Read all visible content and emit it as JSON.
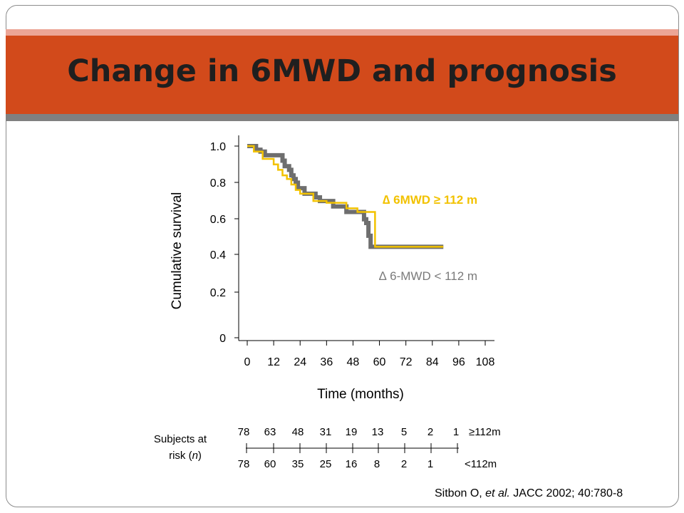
{
  "title": "Change in 6MWD and prognosis",
  "colors": {
    "banner": "#d24a1b",
    "series_high": "#f2c200",
    "series_low": "#6e6e6e"
  },
  "chart_data": {
    "type": "line",
    "subtype": "kaplan-meier step",
    "xlabel": "Time (months)",
    "ylabel": "Cumulative survival",
    "xlim": [
      0,
      108
    ],
    "ylim": [
      0,
      1.0
    ],
    "x_ticks": [
      0,
      12,
      24,
      36,
      48,
      60,
      72,
      84,
      96,
      108
    ],
    "y_ticks": [
      0,
      0.2,
      0.4,
      0.6,
      0.8,
      1.0
    ],
    "y_tick_labels": [
      "0",
      "0.2",
      "0.4",
      "0.6",
      "0.8",
      "1.0"
    ],
    "grid": false,
    "series": [
      {
        "name": "∆ 6-MWD < 112 m",
        "color": "#6e6e6e",
        "x": [
          0,
          4,
          6,
          8,
          16,
          17,
          19,
          20,
          21,
          22,
          23,
          26,
          31,
          33,
          39,
          45,
          53,
          54,
          55,
          56,
          89
        ],
        "y": [
          1.0,
          0.98,
          0.97,
          0.95,
          0.92,
          0.89,
          0.87,
          0.84,
          0.82,
          0.8,
          0.77,
          0.74,
          0.72,
          0.7,
          0.67,
          0.64,
          0.6,
          0.58,
          0.51,
          0.45,
          0.45
        ]
      },
      {
        "name": "∆ 6MWD ≥ 112 m",
        "color": "#f2c200",
        "x": [
          0,
          3,
          7,
          12,
          14,
          16,
          18,
          20,
          22,
          24,
          30,
          36,
          45,
          50,
          58,
          89
        ],
        "y": [
          1.0,
          0.97,
          0.93,
          0.9,
          0.87,
          0.84,
          0.82,
          0.79,
          0.76,
          0.74,
          0.7,
          0.69,
          0.66,
          0.64,
          0.45,
          0.45
        ]
      }
    ],
    "annotations": {
      "high": "∆ 6MWD ≥ 112 m",
      "low": "∆ 6-MWD < 112 m"
    },
    "risk_table": {
      "label": "Subjects at risk (n)",
      "label_line1": "Subjects at",
      "label_line2_pre": "risk (",
      "label_line2_n": "n",
      "label_line2_post": ")",
      "rows": [
        {
          "name": "≥112m",
          "values": [
            "78",
            "63",
            "48",
            "31",
            "19",
            "13",
            "5",
            "2",
            "1"
          ]
        },
        {
          "name": "<112m",
          "values": [
            "78",
            "60",
            "35",
            "25",
            "16",
            "8",
            "2",
            "1"
          ]
        }
      ]
    }
  },
  "citation": {
    "author": "Sitbon O, ",
    "etal": "et al.",
    "journal": " JACC",
    "rest": " 2002; 40:780-8"
  }
}
